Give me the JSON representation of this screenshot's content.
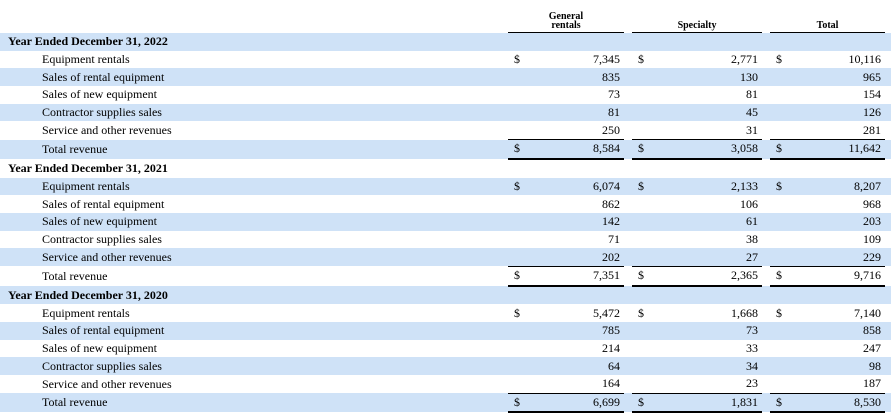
{
  "header": {
    "columns": [
      "General rentals",
      "Specialty",
      "Total"
    ]
  },
  "sections": [
    {
      "title": "Year Ended December 31, 2022",
      "rows": [
        {
          "label": "Equipment rentals",
          "currency": "$",
          "values": [
            "7,345",
            "2,771",
            "10,116"
          ]
        },
        {
          "label": "Sales of rental equipment",
          "values": [
            "835",
            "130",
            "965"
          ]
        },
        {
          "label": "Sales of new equipment",
          "values": [
            "73",
            "81",
            "154"
          ]
        },
        {
          "label": "Contractor supplies sales",
          "values": [
            "81",
            "45",
            "126"
          ]
        },
        {
          "label": "Service and other revenues",
          "values": [
            "250",
            "31",
            "281"
          ]
        },
        {
          "label": "Total revenue",
          "currency": "$",
          "values": [
            "8,584",
            "3,058",
            "11,642"
          ]
        }
      ]
    },
    {
      "title": "Year Ended December 31, 2021",
      "rows": [
        {
          "label": "Equipment rentals",
          "currency": "$",
          "values": [
            "6,074",
            "2,133",
            "8,207"
          ]
        },
        {
          "label": "Sales of rental equipment",
          "values": [
            "862",
            "106",
            "968"
          ]
        },
        {
          "label": "Sales of new equipment",
          "values": [
            "142",
            "61",
            "203"
          ]
        },
        {
          "label": "Contractor supplies sales",
          "values": [
            "71",
            "38",
            "109"
          ]
        },
        {
          "label": "Service and other revenues",
          "values": [
            "202",
            "27",
            "229"
          ]
        },
        {
          "label": "Total revenue",
          "currency": "$",
          "values": [
            "7,351",
            "2,365",
            "9,716"
          ]
        }
      ]
    },
    {
      "title": "Year Ended December 31, 2020",
      "rows": [
        {
          "label": "Equipment rentals",
          "currency": "$",
          "values": [
            "5,472",
            "1,668",
            "7,140"
          ]
        },
        {
          "label": "Sales of rental equipment",
          "values": [
            "785",
            "73",
            "858"
          ]
        },
        {
          "label": "Sales of new equipment",
          "values": [
            "214",
            "33",
            "247"
          ]
        },
        {
          "label": "Contractor supplies sales",
          "values": [
            "64",
            "34",
            "98"
          ]
        },
        {
          "label": "Service and other revenues",
          "values": [
            "164",
            "23",
            "187"
          ]
        },
        {
          "label": "Total revenue",
          "currency": "$",
          "values": [
            "6,699",
            "1,831",
            "8,530"
          ]
        }
      ]
    }
  ]
}
